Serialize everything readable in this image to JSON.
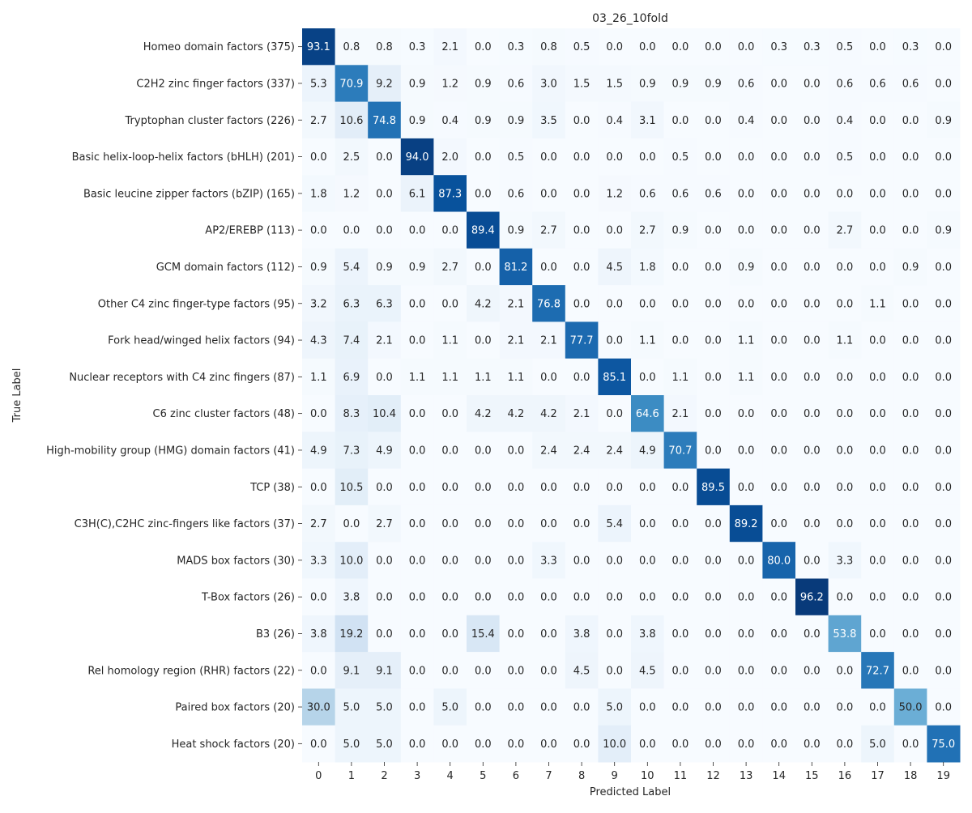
{
  "chart_data": {
    "type": "heatmap",
    "title": "03_26_10fold",
    "xlabel": "Predicted Label",
    "ylabel": "True Label",
    "colormap": "Blues",
    "value_range": [
      0,
      100
    ],
    "columns": [
      "0",
      "1",
      "2",
      "3",
      "4",
      "5",
      "6",
      "7",
      "8",
      "9",
      "10",
      "11",
      "12",
      "13",
      "14",
      "15",
      "16",
      "17",
      "18",
      "19"
    ],
    "rows": [
      "Homeo domain factors (375)",
      "C2H2 zinc finger factors (337)",
      "Tryptophan cluster factors (226)",
      "Basic helix-loop-helix factors (bHLH) (201)",
      "Basic leucine zipper factors (bZIP) (165)",
      "AP2/EREBP (113)",
      "GCM domain factors (112)",
      "Other C4 zinc finger-type factors (95)",
      "Fork head/winged helix factors (94)",
      "Nuclear receptors with C4 zinc fingers (87)",
      "C6 zinc cluster factors (48)",
      "High-mobility group (HMG) domain factors (41)",
      "TCP (38)",
      "C3H(C),C2HC zinc-fingers like factors (37)",
      "MADS box factors (30)",
      "T-Box factors (26)",
      "B3 (26)",
      "Rel homology region (RHR) factors (22)",
      "Paired box factors (20)",
      "Heat shock factors (20)"
    ],
    "values": [
      [
        93.1,
        0.8,
        0.8,
        0.3,
        2.1,
        0.0,
        0.3,
        0.8,
        0.5,
        0.0,
        0.0,
        0.0,
        0.0,
        0.0,
        0.3,
        0.3,
        0.5,
        0.0,
        0.3,
        0.0
      ],
      [
        5.3,
        70.9,
        9.2,
        0.9,
        1.2,
        0.9,
        0.6,
        3.0,
        1.5,
        1.5,
        0.9,
        0.9,
        0.9,
        0.6,
        0.0,
        0.0,
        0.6,
        0.6,
        0.6,
        0.0
      ],
      [
        2.7,
        10.6,
        74.8,
        0.9,
        0.4,
        0.9,
        0.9,
        3.5,
        0.0,
        0.4,
        3.1,
        0.0,
        0.0,
        0.4,
        0.0,
        0.0,
        0.4,
        0.0,
        0.0,
        0.9
      ],
      [
        0.0,
        2.5,
        0.0,
        94.0,
        2.0,
        0.0,
        0.5,
        0.0,
        0.0,
        0.0,
        0.0,
        0.5,
        0.0,
        0.0,
        0.0,
        0.0,
        0.5,
        0.0,
        0.0,
        0.0
      ],
      [
        1.8,
        1.2,
        0.0,
        6.1,
        87.3,
        0.0,
        0.6,
        0.0,
        0.0,
        1.2,
        0.6,
        0.6,
        0.6,
        0.0,
        0.0,
        0.0,
        0.0,
        0.0,
        0.0,
        0.0
      ],
      [
        0.0,
        0.0,
        0.0,
        0.0,
        0.0,
        89.4,
        0.9,
        2.7,
        0.0,
        0.0,
        2.7,
        0.9,
        0.0,
        0.0,
        0.0,
        0.0,
        2.7,
        0.0,
        0.0,
        0.9
      ],
      [
        0.9,
        5.4,
        0.9,
        0.9,
        2.7,
        0.0,
        81.2,
        0.0,
        0.0,
        4.5,
        1.8,
        0.0,
        0.0,
        0.9,
        0.0,
        0.0,
        0.0,
        0.0,
        0.9,
        0.0
      ],
      [
        3.2,
        6.3,
        6.3,
        0.0,
        0.0,
        4.2,
        2.1,
        76.8,
        0.0,
        0.0,
        0.0,
        0.0,
        0.0,
        0.0,
        0.0,
        0.0,
        0.0,
        1.1,
        0.0,
        0.0
      ],
      [
        4.3,
        7.4,
        2.1,
        0.0,
        1.1,
        0.0,
        2.1,
        2.1,
        77.7,
        0.0,
        1.1,
        0.0,
        0.0,
        1.1,
        0.0,
        0.0,
        1.1,
        0.0,
        0.0,
        0.0
      ],
      [
        1.1,
        6.9,
        0.0,
        1.1,
        1.1,
        1.1,
        1.1,
        0.0,
        0.0,
        85.1,
        0.0,
        1.1,
        0.0,
        1.1,
        0.0,
        0.0,
        0.0,
        0.0,
        0.0,
        0.0
      ],
      [
        0.0,
        8.3,
        10.4,
        0.0,
        0.0,
        4.2,
        4.2,
        4.2,
        2.1,
        0.0,
        64.6,
        2.1,
        0.0,
        0.0,
        0.0,
        0.0,
        0.0,
        0.0,
        0.0,
        0.0
      ],
      [
        4.9,
        7.3,
        4.9,
        0.0,
        0.0,
        0.0,
        0.0,
        2.4,
        2.4,
        2.4,
        4.9,
        70.7,
        0.0,
        0.0,
        0.0,
        0.0,
        0.0,
        0.0,
        0.0,
        0.0
      ],
      [
        0.0,
        10.5,
        0.0,
        0.0,
        0.0,
        0.0,
        0.0,
        0.0,
        0.0,
        0.0,
        0.0,
        0.0,
        89.5,
        0.0,
        0.0,
        0.0,
        0.0,
        0.0,
        0.0,
        0.0
      ],
      [
        2.7,
        0.0,
        2.7,
        0.0,
        0.0,
        0.0,
        0.0,
        0.0,
        0.0,
        5.4,
        0.0,
        0.0,
        0.0,
        89.2,
        0.0,
        0.0,
        0.0,
        0.0,
        0.0,
        0.0
      ],
      [
        3.3,
        10.0,
        0.0,
        0.0,
        0.0,
        0.0,
        0.0,
        3.3,
        0.0,
        0.0,
        0.0,
        0.0,
        0.0,
        0.0,
        80.0,
        0.0,
        3.3,
        0.0,
        0.0,
        0.0
      ],
      [
        0.0,
        3.8,
        0.0,
        0.0,
        0.0,
        0.0,
        0.0,
        0.0,
        0.0,
        0.0,
        0.0,
        0.0,
        0.0,
        0.0,
        0.0,
        96.2,
        0.0,
        0.0,
        0.0,
        0.0
      ],
      [
        3.8,
        19.2,
        0.0,
        0.0,
        0.0,
        15.4,
        0.0,
        0.0,
        3.8,
        0.0,
        3.8,
        0.0,
        0.0,
        0.0,
        0.0,
        0.0,
        53.8,
        0.0,
        0.0,
        0.0
      ],
      [
        0.0,
        9.1,
        9.1,
        0.0,
        0.0,
        0.0,
        0.0,
        0.0,
        4.5,
        0.0,
        4.5,
        0.0,
        0.0,
        0.0,
        0.0,
        0.0,
        0.0,
        72.7,
        0.0,
        0.0
      ],
      [
        30.0,
        5.0,
        5.0,
        0.0,
        5.0,
        0.0,
        0.0,
        0.0,
        0.0,
        5.0,
        0.0,
        0.0,
        0.0,
        0.0,
        0.0,
        0.0,
        0.0,
        0.0,
        50.0,
        0.0
      ],
      [
        0.0,
        5.0,
        5.0,
        0.0,
        0.0,
        0.0,
        0.0,
        0.0,
        0.0,
        10.0,
        0.0,
        0.0,
        0.0,
        0.0,
        0.0,
        0.0,
        0.0,
        5.0,
        0.0,
        75.0
      ]
    ]
  }
}
